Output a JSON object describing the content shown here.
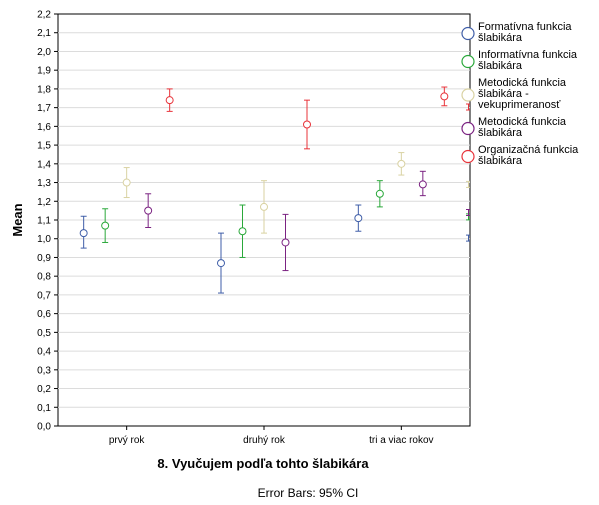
{
  "chart_data": {
    "type": "errorbar",
    "title": "",
    "xlabel": "8. Vyučujem podľa tohto šlabikára",
    "ylabel": "Mean",
    "footnote": "Error Bars: 95% CI",
    "ylim": [
      0,
      2.2
    ],
    "ytick_step": 0.1,
    "grid": true,
    "legend_position": "right",
    "categories": [
      "prvý rok",
      "druhý rok",
      "tri a viac rokov"
    ],
    "series": [
      {
        "name": "Formatívna funkcia šlabikára",
        "legend_lines": [
          "Formatívna funkcia",
          "šlabikára"
        ],
        "color": "#3f5ea8",
        "values": [
          1.03,
          0.87,
          1.11
        ],
        "ci_low": [
          0.95,
          0.71,
          1.04
        ],
        "ci_high": [
          1.12,
          1.03,
          1.18
        ]
      },
      {
        "name": "Informatívna funkcia šlabikára",
        "legend_lines": [
          "Informatívna funkcia",
          "šlabikára"
        ],
        "color": "#2aa83a",
        "values": [
          1.07,
          1.04,
          1.24
        ],
        "ci_low": [
          0.98,
          0.9,
          1.17
        ],
        "ci_high": [
          1.16,
          1.18,
          1.31
        ]
      },
      {
        "name": "Metodická funkcia šlabikára - vekuprimeranosť",
        "legend_lines": [
          "Metodická funkcia",
          "šlabikára -",
          "vekuprimeranosť"
        ],
        "color": "#d9d2a2",
        "values": [
          1.3,
          1.17,
          1.4
        ],
        "ci_low": [
          1.22,
          1.03,
          1.34
        ],
        "ci_high": [
          1.38,
          1.31,
          1.46
        ]
      },
      {
        "name": "Metodická funkcia šlabikára",
        "legend_lines": [
          "Metodická funkcia",
          "šlabikára"
        ],
        "color": "#7b2382",
        "values": [
          1.15,
          0.98,
          1.29
        ],
        "ci_low": [
          1.06,
          0.83,
          1.23
        ],
        "ci_high": [
          1.24,
          1.13,
          1.36
        ]
      },
      {
        "name": "Organizačná funkcia šlabikára",
        "legend_lines": [
          "Organizačná funkcia",
          "šlabikára"
        ],
        "color": "#e8333a",
        "values": [
          1.74,
          1.61,
          1.76
        ],
        "ci_low": [
          1.68,
          1.48,
          1.71
        ],
        "ci_high": [
          1.8,
          1.74,
          1.81
        ]
      }
    ]
  }
}
